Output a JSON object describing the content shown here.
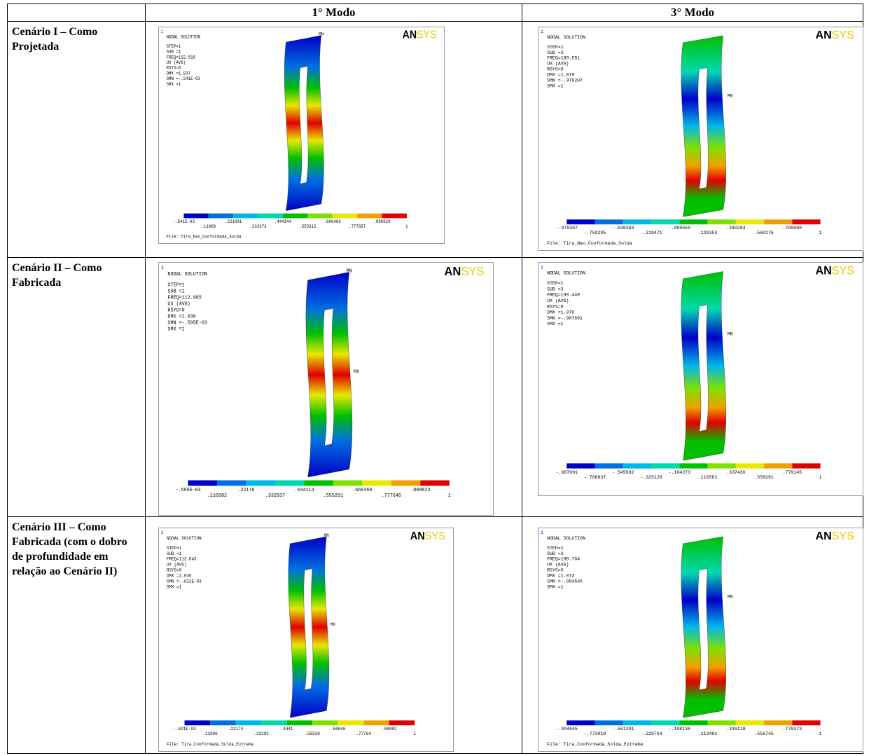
{
  "header": {
    "columns": [
      "1° Modo",
      "3° Modo"
    ]
  },
  "rows": [
    {
      "label": "Cenário I – Como Projetada",
      "panels": [
        {
          "index": "1",
          "title": "NODAL SOLUTION",
          "lines": [
            "STEP=1",
            "SUB =1",
            "FREQ=112.516",
            "UX      (AVG)",
            "RSYS=0",
            "DMX =1.037",
            "SMN =-.541E-03",
            "SMX =1"
          ],
          "logo": [
            "AN",
            "SYS"
          ],
          "markers": [
            "MN"
          ],
          "legend": [
            "-.541E-03",
            ".11069",
            ".221801",
            ".332972",
            ".444144",
            ".555315",
            ".666486",
            ".777657",
            ".888829",
            "1"
          ],
          "file": "File: Tira_Nao_Conformada_Solda"
        },
        {
          "index": "1",
          "title": "NODAL SOLUTION",
          "lines": [
            "STEP=1",
            "SUB =3",
            "FREQ=189.551",
            "UX      (AVG)",
            "RSYS=0",
            "DMX =1.079",
            "SMN =-.979207",
            "SMX =1"
          ],
          "logo": [
            "AN",
            "SYS"
          ],
          "markers": [
            "MN"
          ],
          "legend": [
            "-.979207",
            "-.759295",
            "-.539383",
            "-.319471",
            "-.099559",
            ".120353",
            ".340264",
            ".560176",
            ".780088",
            "1"
          ],
          "file": "File: Tira_Nao_Conformada_Solda"
        }
      ]
    },
    {
      "label": "Cenário II – Como Fabricada",
      "panels": [
        {
          "index": "1",
          "title": "NODAL SOLUTION",
          "lines": [
            "STEP=1",
            "SUB =1",
            "FREQ=112.985",
            "UX      (AVG)",
            "RSYS=0",
            "DMX =1.036",
            "SMN =-.595E-03",
            "SMX =1"
          ],
          "logo": [
            "AN",
            "SYS"
          ],
          "markers": [
            "MN",
            "MX"
          ],
          "legend": [
            "-.595E-03",
            ".110582",
            ".22176",
            ".332937",
            ".444114",
            ".555291",
            ".666468",
            ".777646",
            ".888823",
            "1"
          ]
        },
        {
          "index": "1",
          "title": "NODAL SOLUTION",
          "lines": [
            "STEP=1",
            "SUB =3",
            "FREQ=190.449",
            "UX      (AVG)",
            "RSYS=0",
            "DMX =1.076",
            "SMN =-.987691",
            "SMX =1"
          ],
          "logo": [
            "AN",
            "SYS"
          ],
          "markers": [
            "MN"
          ],
          "legend": [
            "-.987691",
            "-.766837",
            "-.545982",
            "-.325128",
            "-.104273",
            ".116582",
            ".337436",
            ".558291",
            ".779145",
            "1"
          ]
        }
      ]
    },
    {
      "label": "Cenário III – Como Fabricada (com o dobro de profundidade em relação ao Cenário II)",
      "panels": [
        {
          "index": "1",
          "title": "NODAL SOLUTION",
          "lines": [
            "STEP=1",
            "SUB =1",
            "FREQ=112.843",
            "UX      (AVG)",
            "RSYS=0",
            "DMX =1.036",
            "SMN =-.621E-03",
            "SMX =1"
          ],
          "logo": [
            "AN",
            "SYS"
          ],
          "markers": [
            "MN",
            "MX"
          ],
          "legend": [
            "-.621E-03",
            ".11086",
            ".22174",
            ".33292",
            ".4441",
            ".55528",
            ".66646",
            ".77764",
            ".88882",
            "1"
          ],
          "file": "File: Tira_Conformada_Solda_Extreme"
        },
        {
          "index": "1",
          "title": "NODAL SOLUTION",
          "lines": [
            "STEP=1",
            "SUB =3",
            "FREQ=190.764",
            "UX      (AVG)",
            "RSYS=0",
            "DMX =1.073",
            "SMN =-.994645",
            "SMX =1"
          ],
          "logo": [
            "AN",
            "SYS"
          ],
          "markers": [
            "MN"
          ],
          "legend": [
            "-.994645",
            "-.773018",
            "-.551391",
            "-.329764",
            "-.108136",
            ".113491",
            ".335118",
            ".556745",
            ".778373",
            "1"
          ],
          "file": "File: Tira_Conformada_Solda_Extreme"
        }
      ]
    }
  ]
}
